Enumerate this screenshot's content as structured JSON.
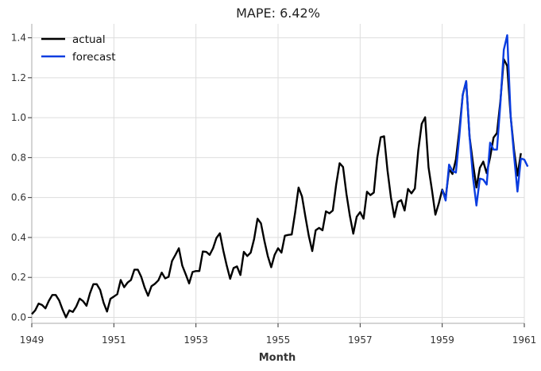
{
  "chart_data": {
    "type": "line",
    "title": "MAPE: 6.42%",
    "xlabel": "Month",
    "ylabel": "",
    "xlim": [
      1949.0,
      1961.0
    ],
    "ylim": [
      -0.03,
      1.47
    ],
    "x_ticks": [
      1949,
      1951,
      1953,
      1955,
      1957,
      1959,
      1961
    ],
    "y_ticks": [
      0.0,
      0.2,
      0.4,
      0.6,
      0.8,
      1.0,
      1.2,
      1.4
    ],
    "x_tick_labels": [
      "1949",
      "1951",
      "1953",
      "1955",
      "1957",
      "1959",
      "1961"
    ],
    "y_tick_labels": [
      "0.0",
      "0.2",
      "0.4",
      "0.6",
      "0.8",
      "1.0",
      "1.2",
      "1.4"
    ],
    "grid": true,
    "legend_position": "top-left",
    "series": [
      {
        "name": "actual",
        "color": "#000000",
        "x_start": "1949-01",
        "x_step": "month",
        "values": [
          0.016,
          0.035,
          0.069,
          0.062,
          0.045,
          0.083,
          0.112,
          0.112,
          0.085,
          0.039,
          0.0,
          0.035,
          0.027,
          0.054,
          0.094,
          0.081,
          0.058,
          0.12,
          0.166,
          0.166,
          0.137,
          0.073,
          0.029,
          0.093,
          0.104,
          0.116,
          0.187,
          0.151,
          0.174,
          0.187,
          0.239,
          0.239,
          0.203,
          0.149,
          0.108,
          0.156,
          0.168,
          0.185,
          0.224,
          0.195,
          0.203,
          0.282,
          0.313,
          0.346,
          0.259,
          0.216,
          0.17,
          0.227,
          0.232,
          0.232,
          0.33,
          0.328,
          0.313,
          0.346,
          0.398,
          0.421,
          0.334,
          0.259,
          0.193,
          0.247,
          0.255,
          0.212,
          0.328,
          0.307,
          0.324,
          0.392,
          0.494,
          0.471,
          0.384,
          0.307,
          0.251,
          0.313,
          0.346,
          0.324,
          0.409,
          0.413,
          0.415,
          0.525,
          0.65,
          0.606,
          0.504,
          0.407,
          0.332,
          0.436,
          0.448,
          0.436,
          0.531,
          0.521,
          0.535,
          0.666,
          0.772,
          0.753,
          0.618,
          0.508,
          0.419,
          0.504,
          0.527,
          0.494,
          0.629,
          0.612,
          0.625,
          0.799,
          0.902,
          0.907,
          0.736,
          0.601,
          0.502,
          0.577,
          0.587,
          0.535,
          0.643,
          0.621,
          0.645,
          0.836,
          0.969,
          1.002,
          0.751,
          0.637,
          0.514,
          0.571,
          0.64,
          0.598,
          0.741,
          0.718,
          0.791,
          0.937,
          1.114,
          1.183,
          0.904,
          0.77,
          0.65,
          0.749,
          0.78,
          0.722,
          0.801,
          0.9,
          0.923,
          1.083,
          1.293,
          1.259,
          1.007,
          0.838,
          0.71,
          0.822
        ]
      },
      {
        "name": "forecast",
        "color": "#0a3de0",
        "x_start": "1959-01",
        "x_step": "month",
        "values": [
          0.64,
          0.585,
          0.765,
          0.733,
          0.725,
          0.905,
          1.115,
          1.183,
          0.905,
          0.7,
          0.56,
          0.695,
          0.69,
          0.665,
          0.875,
          0.84,
          0.84,
          1.07,
          1.34,
          1.413,
          1.01,
          0.81,
          0.63,
          0.795,
          0.79,
          0.755
        ]
      }
    ]
  }
}
